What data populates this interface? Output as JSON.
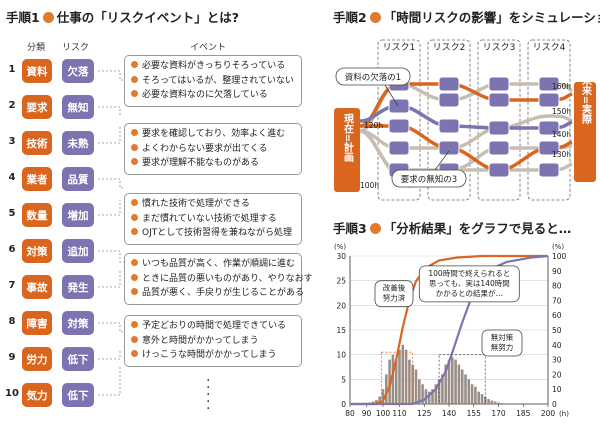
{
  "step1": {
    "title_prefix": "手順1",
    "title_text": "仕事の「リスクイベント」とは?",
    "headers": {
      "category": "分類",
      "risk": "リスク",
      "event": "イベント"
    },
    "rows": [
      {
        "num": "1",
        "category": "資料",
        "risk": "欠落"
      },
      {
        "num": "2",
        "category": "要求",
        "risk": "無知"
      },
      {
        "num": "3",
        "category": "技術",
        "risk": "未熟"
      },
      {
        "num": "4",
        "category": "業者",
        "risk": "品質"
      },
      {
        "num": "5",
        "category": "数量",
        "risk": "増加"
      },
      {
        "num": "6",
        "category": "対策",
        "risk": "追加"
      },
      {
        "num": "7",
        "category": "事故",
        "risk": "発生"
      },
      {
        "num": "8",
        "category": "障害",
        "risk": "対策"
      },
      {
        "num": "9",
        "category": "労力",
        "risk": "低下"
      },
      {
        "num": "10",
        "category": "気力",
        "risk": "低下"
      }
    ],
    "events": [
      [
        "必要な資料がきっちりそろっている",
        "そろってはいるが、整理されていない",
        "必要な資料なのに欠落している"
      ],
      [
        "要求を確認しており、効率よく進む",
        "よくわからない要求が出てくる",
        "要求が理解不能なものがある"
      ],
      [
        "慣れた技術で処理ができる",
        "まだ慣れていない技術で処理する",
        "OJTとして技術習得を兼ねながら処理"
      ],
      [
        "いつも品質が高く、作業が順調に進む",
        "ときに品質の悪いものがあり、やりなおす",
        "品質が悪く、手戻りが生じることがある"
      ],
      [
        "予定どおりの時間で処理できている",
        "意外と時間がかかってしまう",
        "けっこうな時間がかかってしまう"
      ]
    ]
  },
  "step2": {
    "title_prefix": "手順2",
    "title_text": "「時間リスクの影響」をシミュレーション",
    "risk_columns": [
      "リスク1",
      "リスク2",
      "リスク3",
      "リスク4"
    ],
    "left_label": "現在=計画",
    "right_label": "未来=実際",
    "start_values": [
      "120h",
      "100h"
    ],
    "end_values": [
      "160h",
      "150h",
      "140h",
      "130h"
    ],
    "callout_top": "資料の欠落の1",
    "callout_bottom": "要求の無知の3"
  },
  "step3": {
    "title_prefix": "手順3",
    "title_text": "「分析結果」をグラフで見ると…",
    "left_unit": "(%)",
    "right_unit": "(%)",
    "x_unit": "(h)",
    "callout_orange": "改善後\n努力済",
    "callout_note": "100時間で終えられると\n思っても、実は140時間\nかかるとの結果が…",
    "callout_purple": "無対策\n無努力"
  },
  "colors": {
    "orange": "#d9651e",
    "purple": "#7b74b0",
    "histogram": "#9a8e86"
  },
  "chart_data": {
    "type": "bar",
    "x": [
      92,
      94,
      96,
      98,
      100,
      102,
      104,
      106,
      108,
      110,
      112,
      114,
      116,
      118,
      120,
      122,
      124,
      126,
      128,
      130,
      132,
      134,
      136,
      138,
      140,
      142,
      144,
      146,
      148,
      150,
      152,
      154,
      156,
      158,
      160,
      162,
      164,
      166,
      168,
      170,
      172
    ],
    "series": [
      {
        "axis": "left",
        "values": [
          0.3,
          0.5,
          0.8,
          1.5,
          3,
          6,
          9,
          10,
          9,
          11,
          12,
          11,
          9,
          8,
          7,
          5,
          4,
          3,
          2.5,
          3,
          4,
          5,
          6,
          8,
          9,
          9.5,
          9,
          8,
          7,
          6,
          5,
          4,
          3.5,
          2.5,
          2,
          1.5,
          1,
          0.7,
          0.5,
          0.3,
          0.2
        ]
      }
    ],
    "curves": [
      {
        "color": "orange",
        "axis": "right",
        "x": [
          80,
          95,
          100,
          104,
          108,
          112,
          116,
          120,
          126,
          134,
          145,
          160,
          200
        ],
        "y": [
          0,
          0,
          2,
          12,
          30,
          52,
          70,
          83,
          92,
          97,
          99,
          100,
          100
        ]
      },
      {
        "color": "purple",
        "axis": "right",
        "x": [
          80,
          118,
          125,
          132,
          138,
          143,
          148,
          153,
          158,
          165,
          175,
          190,
          200
        ],
        "y": [
          0,
          0,
          3,
          10,
          22,
          38,
          55,
          70,
          82,
          91,
          96,
          99,
          100
        ]
      }
    ],
    "xticks": [
      "80",
      "90",
      "100",
      "110",
      "125",
      "140",
      "155",
      "170",
      "185",
      "200"
    ],
    "x_tick_values": [
      80,
      90,
      100,
      110,
      125,
      140,
      155,
      170,
      185,
      200
    ],
    "yticks_left": [
      "0",
      "5",
      "10",
      "15",
      "20",
      "25",
      "30"
    ],
    "yticks_right": [
      "0",
      "10",
      "20",
      "30",
      "40",
      "50",
      "60",
      "70",
      "80",
      "90",
      "100"
    ],
    "ylim_left": [
      0,
      30
    ],
    "ylim_right": [
      0,
      100
    ],
    "grid": true
  }
}
